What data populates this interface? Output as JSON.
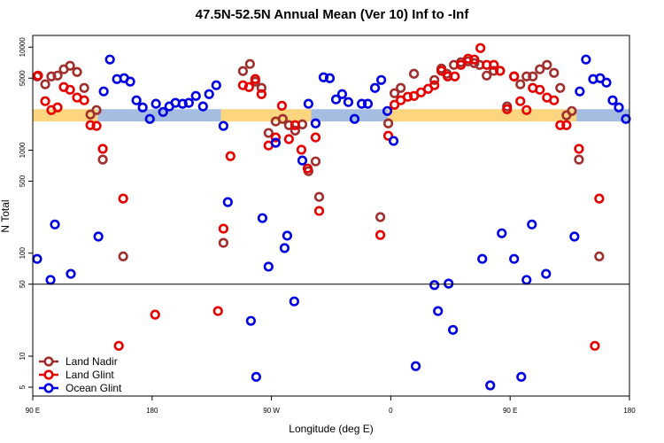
{
  "chart_data": {
    "type": "scatter",
    "title": "47.5N-52.5N Annual Mean (Ver 10)   Inf to -Inf",
    "x_label": "Longitude (deg E)",
    "y_label": "N Total",
    "log_y": true,
    "xlim": [
      90,
      540
    ],
    "ylim": [
      4.1,
      13000
    ],
    "xticks": [
      {
        "value": 90,
        "label": "90 E"
      },
      180,
      {
        "value": 270,
        "label": "90 W"
      },
      {
        "value": 360,
        "label": "0"
      },
      {
        "value": 450,
        "label": "90 E"
      },
      {
        "value": 540,
        "label": "180"
      }
    ],
    "yticks": [
      5,
      10,
      50,
      100,
      500,
      1000,
      5000,
      10000
    ],
    "hline": 50,
    "legend": "bottom-left",
    "band": {
      "range": [
        1900,
        2500
      ],
      "segments": [
        {
          "xlim": [
            90,
            139
          ],
          "color": "#fdd57e"
        },
        {
          "xlim": [
            139,
            232
          ],
          "color": "#a4bde0"
        },
        {
          "xlim": [
            232,
            300
          ],
          "color": "#fdd57e"
        },
        {
          "xlim": [
            300,
            358
          ],
          "color": "#a4bde0"
        },
        {
          "xlim": [
            358,
            500
          ],
          "color": "#fdd57e"
        },
        {
          "xlim": [
            500,
            540
          ],
          "color": "#a4bde0"
        }
      ]
    },
    "series": [
      {
        "name": "Land Nadir",
        "color": "#a0302e",
        "x": [
          93.3,
          99.4,
          104,
          108.7,
          113.4,
          118.1,
          123.4,
          128.8,
          133.5,
          138.1,
          142.8,
          158.2,
          233.8,
          248.5,
          253.8,
          257.8,
          262.5,
          267.8,
          273.2,
          278.5,
          283.2,
          287.9,
          293.3,
          297.9,
          303.3,
          306,
          352.1,
          358.1,
          362.8,
          367.5,
          377.5,
          392.9,
          398.2,
          402.2,
          407.6,
          412.9,
          418.3,
          423,
          427,
          432.3,
          437.7,
          442.4,
          447.7,
          453,
          457.7,
          462.4,
          467.1,
          472.4,
          477.8,
          483.1,
          487.8,
          492.5,
          496.5,
          501.9,
          517.2
        ],
        "values": [
          5200,
          4360,
          5200,
          5300,
          6100,
          6600,
          5740,
          4020,
          2220,
          2450,
          810,
          93,
          126,
          5860,
          6870,
          4630,
          4020,
          1470,
          1900,
          2010,
          1750,
          1550,
          1780,
          625,
          778,
          352,
          224,
          1820,
          3570,
          4020,
          5520,
          4800,
          6210,
          5520,
          6730,
          7140,
          7280,
          7000,
          6730,
          5300,
          5890,
          5890,
          2660,
          5200,
          4360,
          5200,
          5200,
          6100,
          6730,
          5630,
          4020,
          2180,
          2400,
          810,
          93
        ]
      },
      {
        "name": "Land Glint",
        "color": "#e60000",
        "x": [
          94,
          99.4,
          104,
          108.7,
          113.4,
          118.1,
          123.4,
          128.8,
          133.5,
          138.1,
          142.8,
          158.2,
          154.9,
          182.3,
          229.7,
          233.8,
          239.1,
          248.5,
          253.1,
          257.8,
          262.5,
          267.8,
          273.2,
          277.9,
          283.2,
          287.9,
          292.6,
          297.3,
          303.3,
          306,
          352.1,
          358.1,
          362.8,
          367.5,
          372.8,
          377.5,
          382.8,
          388.2,
          392.9,
          398.2,
          402.9,
          408.3,
          412.9,
          418.3,
          423,
          427.6,
          432.3,
          437.7,
          442.4,
          447.7,
          453,
          457.7,
          462.4,
          467.1,
          472.4,
          477.8,
          483.1,
          487.8,
          492.5,
          501.9,
          517.2,
          513.9
        ],
        "values": [
          5300,
          2990,
          2450,
          2600,
          4100,
          3860,
          3240,
          3050,
          1750,
          1720,
          1030,
          339,
          12.6,
          25.3,
          27.4,
          173,
          875,
          4270,
          4100,
          4900,
          3500,
          1110,
          1330,
          2700,
          1280,
          1750,
          1010,
          664,
          1330,
          257,
          150,
          1380,
          2760,
          3050,
          3300,
          3360,
          3640,
          3940,
          4270,
          5890,
          5200,
          5200,
          6730,
          7730,
          7590,
          9800,
          6730,
          6730,
          5890,
          2500,
          5200,
          2990,
          2450,
          4020,
          3860,
          3240,
          3050,
          1750,
          1750,
          1030,
          339,
          12.6
        ]
      },
      {
        "name": "Ocean Glint",
        "color": "#0000e0",
        "x": [
          93.3,
          103.4,
          106.7,
          118.7,
          139.5,
          143.5,
          148.2,
          153.5,
          158.9,
          163.5,
          168.2,
          172.9,
          178.3,
          182.9,
          188.3,
          193,
          197.6,
          203,
          207.7,
          213,
          218.4,
          223,
          228.4,
          233.8,
          237.1,
          254.5,
          258.5,
          263.2,
          267.8,
          273.2,
          279.9,
          281.9,
          287.2,
          293.3,
          297.9,
          303.3,
          309.3,
          314,
          318.7,
          323.3,
          328,
          332.7,
          338.1,
          342.7,
          348.1,
          352.8,
          357.4,
          362.1,
          378.8,
          392.9,
          395.6,
          403.6,
          406.9,
          429,
          435,
          443.7,
          453,
          458.4,
          462.4,
          466.4,
          477.1,
          498.5,
          502.5,
          507.2,
          512.6,
          517.9,
          522.6,
          527.3,
          532,
          537.3
        ],
        "values": [
          88,
          55,
          190,
          63,
          145,
          3720,
          7590,
          4900,
          5000,
          4630,
          3050,
          2600,
          2010,
          2820,
          2350,
          2660,
          2880,
          2820,
          2880,
          3360,
          2660,
          3500,
          4270,
          1720,
          313,
          22,
          6.3,
          219,
          74,
          1180,
          112,
          148,
          34,
          794,
          2820,
          1820,
          5100,
          5000,
          3110,
          3500,
          2930,
          2010,
          2820,
          2820,
          4020,
          4800,
          2400,
          1230,
          8,
          49,
          27.4,
          50.6,
          18,
          88,
          5.2,
          156,
          88,
          6.3,
          55,
          190,
          63,
          145,
          3720,
          7590,
          4900,
          5000,
          4530,
          3050,
          2600,
          2010
        ]
      }
    ]
  }
}
